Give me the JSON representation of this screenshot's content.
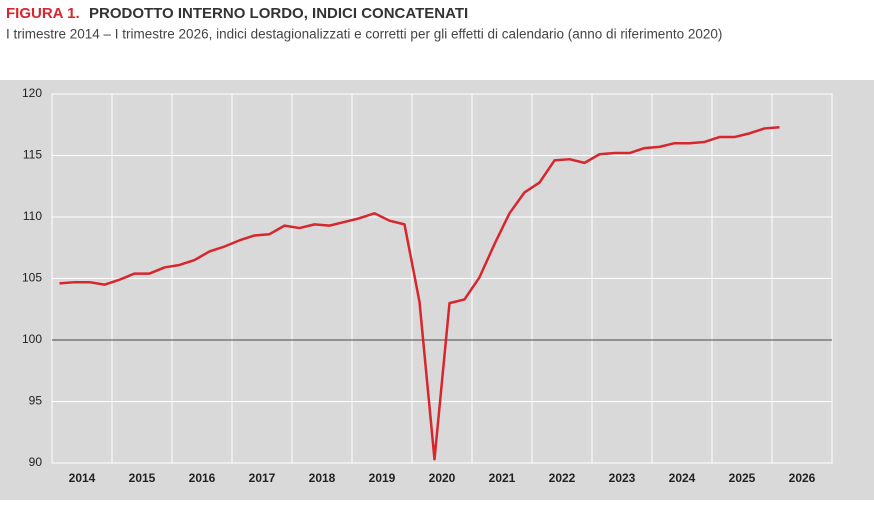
{
  "chart_data": {
    "type": "line",
    "figure_label": "FIGURA 1.",
    "title": "PRODOTTO INTERNO LORDO, INDICI CONCATENATI",
    "subtitle": "I trimestre 2014 – I trimestre 2026, indici destagionalizzati e corretti per gli effetti di calendario (anno di riferimento 2020)",
    "xticks": [
      "2014",
      "2015",
      "2016",
      "2017",
      "2018",
      "2019",
      "2020",
      "2021",
      "2022",
      "2023",
      "2024",
      "2025",
      "2026"
    ],
    "values": [
      104.6,
      104.7,
      104.7,
      104.5,
      104.9,
      105.4,
      105.4,
      105.9,
      106.1,
      106.5,
      107.2,
      107.6,
      108.1,
      108.5,
      108.6,
      109.3,
      109.1,
      109.4,
      109.3,
      109.6,
      109.9,
      110.3,
      109.7,
      109.4,
      103.1,
      90.3,
      103.0,
      103.3,
      105.1,
      107.8,
      110.3,
      112.0,
      112.8,
      114.6,
      114.7,
      114.4,
      115.1,
      115.2,
      115.2,
      115.6,
      115.7,
      116.0,
      116.0,
      116.1,
      116.5,
      116.5,
      116.8,
      117.2,
      117.3
    ],
    "color": "#d7262e",
    "ylim": [
      90,
      120
    ],
    "yticks": [
      90,
      95,
      100,
      105,
      110,
      115,
      120
    ],
    "reference_line": 100,
    "grid": true
  }
}
